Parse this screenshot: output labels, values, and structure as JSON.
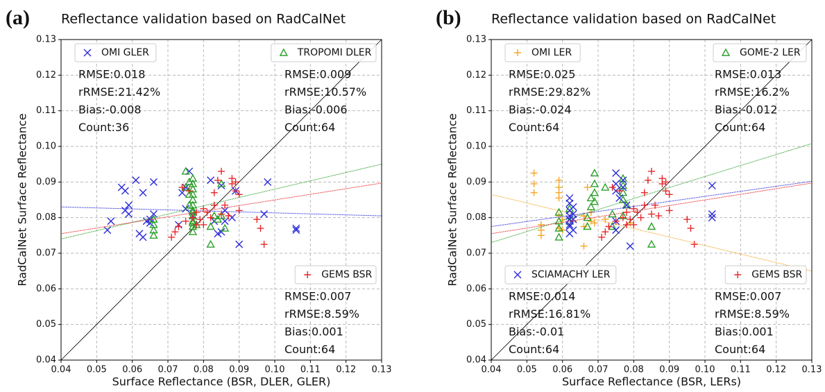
{
  "chart_data": [
    {
      "type": "scatter",
      "panel_label": "(a)",
      "title": "Reflectance validation based on RadCalNet",
      "xlabel": "Surface Reflectance (BSR, DLER, GLER)",
      "ylabel": "RadCalNet Surface Reflectance",
      "xlim": [
        0.04,
        0.13
      ],
      "ylim": [
        0.04,
        0.13
      ],
      "xticks": [
        0.04,
        0.05,
        0.06,
        0.07,
        0.08,
        0.09,
        {
          "value": 0.1,
          "label": "0.10"
        },
        0.11,
        0.12,
        0.13
      ],
      "yticks": [
        0.04,
        0.05,
        0.06,
        0.07,
        0.08,
        0.09,
        {
          "value": 0.1,
          "label": "0.10"
        },
        0.11,
        0.12,
        0.13
      ],
      "grid": true,
      "series": [
        {
          "name": "OMI GLER",
          "color": "#2b2bd9",
          "marker": "x",
          "legend_loc": "upper left",
          "stats": [
            "RMSE:0.018",
            "rRMSE:21.42%",
            "Bias:-0.008",
            "Count:36"
          ],
          "x": [
            0.053,
            0.054,
            0.057,
            0.058,
            0.058,
            0.059,
            0.059,
            0.061,
            0.062,
            0.063,
            0.063,
            0.064,
            0.065,
            0.066,
            0.066,
            0.073,
            0.074,
            0.075,
            0.076,
            0.077,
            0.082,
            0.083,
            0.084,
            0.085,
            0.085,
            0.086,
            0.088,
            0.089,
            0.09,
            0.097,
            0.098,
            0.106,
            0.106,
            0.065,
            0.086,
            0.075
          ],
          "values": [
            0.0765,
            0.079,
            0.0885,
            0.0875,
            0.082,
            0.0835,
            0.081,
            0.0905,
            0.0755,
            0.0745,
            0.087,
            0.079,
            0.0795,
            0.09,
            0.081,
            0.078,
            0.087,
            0.0825,
            0.093,
            0.0805,
            0.0905,
            0.079,
            0.0755,
            0.076,
            0.089,
            0.082,
            0.08,
            0.0875,
            0.0725,
            0.081,
            0.09,
            0.077,
            0.0765,
            0.0785,
            0.079,
            0.0885
          ],
          "fit": {
            "x": [
              0.04,
              0.13
            ],
            "y": [
              0.083,
              0.0805
            ]
          }
        },
        {
          "name": "TROPOMI DLER",
          "color": "#2ca02c",
          "marker": "triangle",
          "legend_loc": "upper right",
          "stats": [
            "RMSE:0.009",
            "rRMSE:10.57%",
            "Bias:-0.006",
            "Count:64"
          ],
          "x": [
            0.066,
            0.066,
            0.066,
            0.066,
            0.075,
            0.075,
            0.076,
            0.076,
            0.077,
            0.077,
            0.077,
            0.077,
            0.077,
            0.077,
            0.077,
            0.077,
            0.077,
            0.077,
            0.077,
            0.077,
            0.082,
            0.082,
            0.083,
            0.084,
            0.085,
            0.085,
            0.086,
            0.076,
            0.077,
            0.078
          ],
          "values": [
            0.075,
            0.0765,
            0.078,
            0.0795,
            0.093,
            0.0885,
            0.09,
            0.0865,
            0.091,
            0.0895,
            0.088,
            0.0865,
            0.085,
            0.0835,
            0.082,
            0.0805,
            0.079,
            0.0775,
            0.076,
            0.0785,
            0.0725,
            0.0775,
            0.0805,
            0.0795,
            0.0895,
            0.0805,
            0.077,
            0.0835,
            0.0815,
            0.078
          ],
          "fit": {
            "x": [
              0.04,
              0.13
            ],
            "y": [
              0.074,
              0.095
            ]
          }
        },
        {
          "name": "GEMS BSR",
          "color": "#e8262a",
          "marker": "plus",
          "legend_loc": "lower right",
          "stats": [
            "RMSE:0.007",
            "rRMSE:8.59%",
            "Bias:0.001",
            "Count:64"
          ],
          "x": [
            0.071,
            0.072,
            0.073,
            0.074,
            0.075,
            0.076,
            0.077,
            0.078,
            0.078,
            0.079,
            0.08,
            0.08,
            0.081,
            0.082,
            0.083,
            0.083,
            0.084,
            0.085,
            0.085,
            0.086,
            0.087,
            0.088,
            0.088,
            0.089,
            0.089,
            0.09,
            0.09,
            0.095,
            0.096,
            0.097
          ],
          "values": [
            0.0745,
            0.076,
            0.0775,
            0.0885,
            0.079,
            0.0875,
            0.08,
            0.078,
            0.0815,
            0.0795,
            0.078,
            0.0825,
            0.0815,
            0.08,
            0.0835,
            0.087,
            0.0905,
            0.093,
            0.081,
            0.0835,
            0.0805,
            0.0895,
            0.091,
            0.09,
            0.0875,
            0.082,
            0.0865,
            0.0795,
            0.077,
            0.0725
          ],
          "fit": {
            "x": [
              0.04,
              0.13
            ],
            "y": [
              0.0755,
              0.0897
            ]
          }
        }
      ]
    },
    {
      "type": "scatter",
      "panel_label": "(b)",
      "title": "Reflectance validation based on RadCalNet",
      "xlabel": "Surface Reflectance (BSR, LERs)",
      "ylabel": "RadCalNet Surface Reflectance",
      "xlim": [
        0.04,
        0.13
      ],
      "ylim": [
        0.04,
        0.13
      ],
      "xticks": [
        0.04,
        0.05,
        0.06,
        0.07,
        0.08,
        0.09,
        {
          "value": 0.1,
          "label": "0.10"
        },
        0.11,
        0.12,
        0.13
      ],
      "yticks": [
        0.04,
        0.05,
        0.06,
        0.07,
        0.08,
        0.09,
        {
          "value": 0.1,
          "label": "0.10"
        },
        0.11,
        0.12,
        0.13
      ],
      "grid": true,
      "series": [
        {
          "name": "OMI LER",
          "color": "#f5a623",
          "marker": "plus",
          "legend_loc": "upper left",
          "stats": [
            "RMSE:0.025",
            "rRMSE:29.82%",
            "Bias:-0.024",
            "Count:64"
          ],
          "x": [
            0.052,
            0.052,
            0.052,
            0.054,
            0.054,
            0.054,
            0.059,
            0.059,
            0.059,
            0.059,
            0.059,
            0.059,
            0.06,
            0.06,
            0.063,
            0.066,
            0.066,
            0.066,
            0.067,
            0.068,
            0.068,
            0.069,
            0.072,
            0.079
          ],
          "values": [
            0.0925,
            0.0895,
            0.087,
            0.078,
            0.0765,
            0.075,
            0.0905,
            0.0885,
            0.087,
            0.0855,
            0.0805,
            0.077,
            0.0795,
            0.0765,
            0.079,
            0.0805,
            0.0775,
            0.072,
            0.0885,
            0.0815,
            0.079,
            0.0785,
            0.0795,
            0.0785
          ],
          "fit": {
            "x": [
              0.04,
              0.13
            ],
            "y": [
              0.0865,
              0.065
            ]
          }
        },
        {
          "name": "GOME-2 LER",
          "color": "#2ca02c",
          "marker": "triangle",
          "legend_loc": "upper right",
          "stats": [
            "RMSE:0.013",
            "rRMSE:16.2%",
            "Bias:-0.012",
            "Count:64"
          ],
          "x": [
            0.059,
            0.059,
            0.059,
            0.059,
            0.062,
            0.062,
            0.067,
            0.067,
            0.068,
            0.068,
            0.069,
            0.069,
            0.069,
            0.069,
            0.072,
            0.074,
            0.074,
            0.077,
            0.077,
            0.077,
            0.077,
            0.077,
            0.078,
            0.085,
            0.085
          ],
          "values": [
            0.0745,
            0.077,
            0.079,
            0.0815,
            0.079,
            0.0825,
            0.0775,
            0.08,
            0.083,
            0.0855,
            0.0925,
            0.0895,
            0.087,
            0.0845,
            0.0885,
            0.0775,
            0.081,
            0.091,
            0.089,
            0.087,
            0.085,
            0.0805,
            0.0835,
            0.0775,
            0.0725
          ],
          "fit": {
            "x": [
              0.04,
              0.13
            ],
            "y": [
              0.073,
              0.1008
            ]
          }
        },
        {
          "name": "SCIAMACHY LER",
          "color": "#2b2bd9",
          "marker": "x",
          "legend_loc": "lower left",
          "stats": [
            "RMSE:0.014",
            "rRMSE:16.81%",
            "Bias:-0.01",
            "Count:64"
          ],
          "x": [
            0.062,
            0.062,
            0.062,
            0.062,
            0.062,
            0.062,
            0.062,
            0.062,
            0.063,
            0.063,
            0.063,
            0.063,
            0.075,
            0.075,
            0.075,
            0.075,
            0.075,
            0.076,
            0.077,
            0.077,
            0.078,
            0.079,
            0.102,
            0.102,
            0.102
          ],
          "values": [
            0.0755,
            0.0775,
            0.0795,
            0.0805,
            0.082,
            0.084,
            0.0855,
            0.078,
            0.081,
            0.083,
            0.0765,
            0.0795,
            0.0925,
            0.0895,
            0.0875,
            0.0765,
            0.079,
            0.0855,
            0.0905,
            0.0885,
            0.0835,
            0.072,
            0.089,
            0.081,
            0.08
          ],
          "fit": {
            "x": [
              0.04,
              0.13
            ],
            "y": [
              0.0775,
              0.0902
            ]
          }
        },
        {
          "name": "GEMS BSR",
          "color": "#e8262a",
          "marker": "plus",
          "legend_loc": "lower right",
          "stats": [
            "RMSE:0.007",
            "rRMSE:8.59%",
            "Bias:0.001",
            "Count:64"
          ],
          "x": [
            0.071,
            0.072,
            0.073,
            0.074,
            0.075,
            0.076,
            0.077,
            0.078,
            0.078,
            0.079,
            0.08,
            0.08,
            0.081,
            0.082,
            0.083,
            0.083,
            0.084,
            0.085,
            0.085,
            0.086,
            0.087,
            0.088,
            0.088,
            0.089,
            0.089,
            0.09,
            0.09,
            0.095,
            0.096,
            0.097
          ],
          "values": [
            0.0745,
            0.076,
            0.0775,
            0.0885,
            0.079,
            0.0875,
            0.08,
            0.078,
            0.0815,
            0.0795,
            0.078,
            0.0825,
            0.0815,
            0.08,
            0.0835,
            0.087,
            0.0905,
            0.093,
            0.081,
            0.0835,
            0.0805,
            0.0895,
            0.091,
            0.09,
            0.0875,
            0.082,
            0.0865,
            0.0795,
            0.077,
            0.0725
          ],
          "fit": {
            "x": [
              0.04,
              0.13
            ],
            "y": [
              0.0755,
              0.0897
            ]
          }
        }
      ]
    }
  ]
}
